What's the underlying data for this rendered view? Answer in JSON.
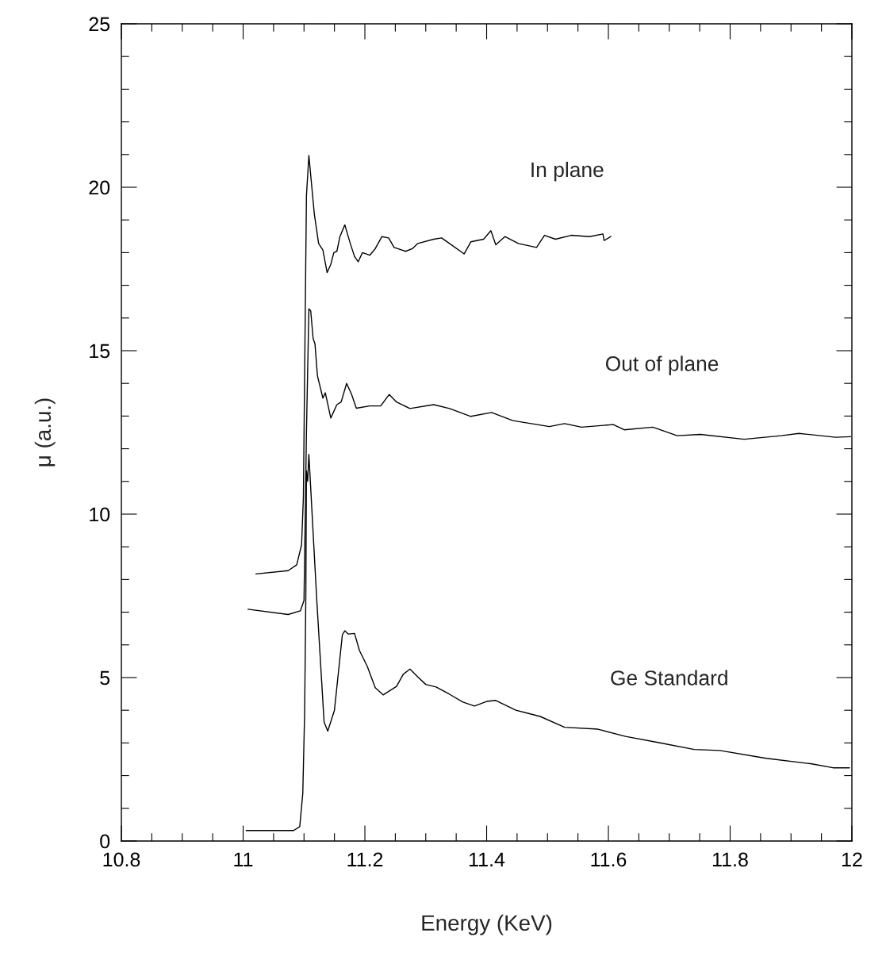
{
  "chart_data": {
    "type": "line",
    "xlabel": "Energy (KeV)",
    "ylabel": "μ (a.u.)",
    "xlim": [
      10.8,
      12
    ],
    "xticks": [
      10.8,
      11,
      11.2,
      11.4,
      11.6,
      11.8,
      12
    ],
    "ylim": [
      0,
      25
    ],
    "yticks": [
      0,
      5,
      10,
      15,
      20,
      25
    ],
    "grid": false,
    "legend": false,
    "marker": "none",
    "line_style": "solid",
    "series": [
      {
        "name": "In plane",
        "color": "#000000",
        "x": [
          11.021,
          11.074,
          11.088,
          11.096,
          11.099,
          11.104,
          11.108,
          11.117,
          11.124,
          11.131,
          11.138,
          11.144,
          11.149,
          11.154,
          11.159,
          11.167,
          11.176,
          11.183,
          11.189,
          11.196,
          11.208,
          11.217,
          11.228,
          11.239,
          11.248,
          11.267,
          11.278,
          11.287,
          11.313,
          11.326,
          11.339,
          11.363,
          11.374,
          11.395,
          11.407,
          11.415,
          11.43,
          11.452,
          11.482,
          11.495,
          11.513,
          11.539,
          11.569,
          11.591,
          11.593,
          11.604
        ],
        "values": [
          8.17,
          8.27,
          8.45,
          9.06,
          10.52,
          19.74,
          20.97,
          19.17,
          18.28,
          18.08,
          17.39,
          17.64,
          18.0,
          18.04,
          18.49,
          18.85,
          18.28,
          17.88,
          17.72,
          18.0,
          17.92,
          18.12,
          18.49,
          18.45,
          18.16,
          18.04,
          18.12,
          18.28,
          18.41,
          18.45,
          18.28,
          17.96,
          18.33,
          18.41,
          18.67,
          18.24,
          18.49,
          18.28,
          18.16,
          18.53,
          18.41,
          18.53,
          18.49,
          18.57,
          18.37,
          18.49
        ]
      },
      {
        "name": "Out of plane",
        "color": "#000000",
        "x": [
          11.008,
          11.074,
          11.094,
          11.1,
          11.104,
          11.108,
          11.111,
          11.115,
          11.118,
          11.122,
          11.131,
          11.135,
          11.144,
          11.154,
          11.161,
          11.17,
          11.178,
          11.186,
          11.208,
          11.226,
          11.24,
          11.252,
          11.274,
          11.313,
          11.339,
          11.374,
          11.408,
          11.443,
          11.503,
          11.528,
          11.556,
          11.608,
          11.626,
          11.673,
          11.713,
          11.751,
          11.823,
          11.884,
          11.913,
          11.973,
          11.998
        ],
        "values": [
          7.09,
          6.93,
          7.04,
          7.36,
          12.5,
          16.28,
          16.22,
          15.37,
          15.21,
          14.24,
          13.55,
          13.71,
          12.94,
          13.35,
          13.43,
          14.0,
          13.67,
          13.24,
          13.31,
          13.31,
          13.66,
          13.43,
          13.23,
          13.35,
          13.23,
          12.99,
          13.11,
          12.86,
          12.68,
          12.77,
          12.66,
          12.74,
          12.58,
          12.66,
          12.4,
          12.44,
          12.29,
          12.4,
          12.47,
          12.35,
          12.37
        ]
      },
      {
        "name": "Ge Standard",
        "color": "#000000",
        "x": [
          11.005,
          11.083,
          11.093,
          11.098,
          11.101,
          11.103,
          11.104,
          11.106,
          11.108,
          11.121,
          11.133,
          11.139,
          11.15,
          11.163,
          11.167,
          11.173,
          11.183,
          11.191,
          11.204,
          11.217,
          11.23,
          11.252,
          11.263,
          11.274,
          11.287,
          11.3,
          11.317,
          11.339,
          11.361,
          11.38,
          11.4,
          11.415,
          11.448,
          11.469,
          11.488,
          11.528,
          11.583,
          11.628,
          11.683,
          11.741,
          11.783,
          11.859,
          11.934,
          11.969,
          11.996
        ],
        "values": [
          0.32,
          0.32,
          0.44,
          1.46,
          3.9,
          7.5,
          11.33,
          11.0,
          11.83,
          7.36,
          3.64,
          3.36,
          4.0,
          6.31,
          6.43,
          6.33,
          6.35,
          5.83,
          5.34,
          4.69,
          4.47,
          4.73,
          5.1,
          5.26,
          5.02,
          4.79,
          4.71,
          4.49,
          4.25,
          4.13,
          4.27,
          4.3,
          4.0,
          3.9,
          3.81,
          3.48,
          3.42,
          3.2,
          3.01,
          2.8,
          2.77,
          2.53,
          2.36,
          2.24,
          2.24
        ]
      }
    ]
  }
}
